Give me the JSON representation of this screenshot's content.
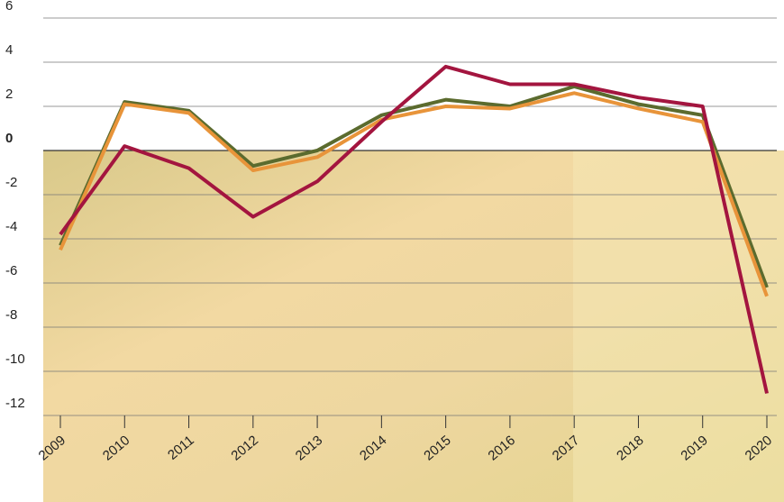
{
  "chart_data": {
    "type": "line",
    "categories": [
      "2009",
      "2010",
      "2011",
      "2012",
      "2013",
      "2014",
      "2015",
      "2016",
      "2017",
      "2018",
      "2019",
      "2020"
    ],
    "series": [
      {
        "color": "#5b6b2e",
        "values": [
          -4.3,
          2.2,
          1.8,
          -0.7,
          0,
          1.6,
          2.3,
          2.0,
          2.9,
          2.1,
          1.6,
          -6.2
        ]
      },
      {
        "color": "#e8943a",
        "values": [
          -4.5,
          2.1,
          1.7,
          -0.9,
          -0.3,
          1.4,
          2.0,
          1.9,
          2.6,
          1.9,
          1.3,
          -6.6
        ]
      },
      {
        "color": "#a3153f",
        "values": [
          -3.8,
          0.2,
          -0.8,
          -3.0,
          -1.4,
          1.3,
          3.8,
          3.0,
          3.0,
          2.4,
          2.0,
          -11.0
        ]
      }
    ],
    "ylim": [
      -12,
      6
    ],
    "yticks": [
      -12,
      -10,
      -8,
      -6,
      -4,
      -2,
      0,
      2,
      4,
      6
    ],
    "grid": true
  }
}
